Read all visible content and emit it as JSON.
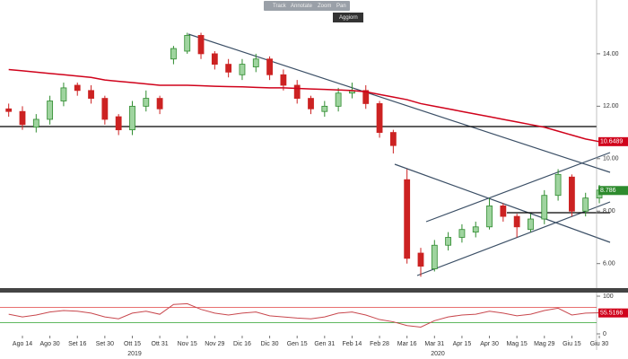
{
  "toolbar": [
    "Track",
    "Annotate",
    "Zoom",
    "Pan"
  ],
  "button": "Aggiorn",
  "years": [
    "2019",
    "2020"
  ],
  "chart_data": [
    {
      "type": "candlestick",
      "categories": [
        null,
        "Ago 14",
        null,
        "Ago 30",
        null,
        "Set 16",
        null,
        "Set 30",
        null,
        "Ott 15",
        null,
        "Ott 31",
        null,
        "Nov 15",
        null,
        "Nov 29",
        null,
        "Dic 16",
        null,
        "Dic 30",
        null,
        "Gen 15",
        null,
        "Gen 31",
        null,
        "Feb 14",
        null,
        "Feb 28",
        null,
        "Mar 16",
        null,
        "Mar 31",
        null,
        "Apr 15",
        null,
        "Apr 30",
        null,
        "Mag 15",
        null,
        "Mag 29",
        null,
        "Giu 15",
        null,
        "Giu 30"
      ],
      "open": [
        11.9,
        11.8,
        11.2,
        11.5,
        12.2,
        12.8,
        12.6,
        12.3,
        11.6,
        11.1,
        12.0,
        12.3,
        13.8,
        14.1,
        14.7,
        14.0,
        13.6,
        13.2,
        13.5,
        13.8,
        13.2,
        12.8,
        12.3,
        11.8,
        12.0,
        12.5,
        12.6,
        12.1,
        11.0,
        9.2,
        6.4,
        5.8,
        6.7,
        7.0,
        7.2,
        7.4,
        8.2,
        7.8,
        7.3,
        7.7,
        8.6,
        9.3,
        8.0,
        8.5
      ],
      "high": [
        12.1,
        12.0,
        11.7,
        12.4,
        12.9,
        12.9,
        12.8,
        12.4,
        11.7,
        12.2,
        12.6,
        12.4,
        14.3,
        14.8,
        14.8,
        14.1,
        13.8,
        13.8,
        14.0,
        13.9,
        13.4,
        13.0,
        12.4,
        12.2,
        12.7,
        12.9,
        12.8,
        12.2,
        11.1,
        9.6,
        6.6,
        6.9,
        7.2,
        7.5,
        7.6,
        8.5,
        8.3,
        7.9,
        7.9,
        8.8,
        9.6,
        9.4,
        8.7,
        9.0
      ],
      "low": [
        11.6,
        11.1,
        11.0,
        11.3,
        12.0,
        12.4,
        12.1,
        11.3,
        10.9,
        10.9,
        11.8,
        11.7,
        13.6,
        14.0,
        13.8,
        13.4,
        13.1,
        13.0,
        13.3,
        13.0,
        12.6,
        12.1,
        11.7,
        11.6,
        11.8,
        12.3,
        11.9,
        10.8,
        10.2,
        6.0,
        5.5,
        5.7,
        6.5,
        6.8,
        7.0,
        7.3,
        7.6,
        7.0,
        7.2,
        7.5,
        8.4,
        7.8,
        7.8,
        8.3
      ],
      "close": [
        11.8,
        11.3,
        11.5,
        12.2,
        12.7,
        12.6,
        12.3,
        11.5,
        11.1,
        12.0,
        12.3,
        11.9,
        14.2,
        14.7,
        14.0,
        13.6,
        13.3,
        13.6,
        13.8,
        13.2,
        12.8,
        12.3,
        11.9,
        12.0,
        12.5,
        12.6,
        12.1,
        11.0,
        10.5,
        6.2,
        5.9,
        6.7,
        7.0,
        7.3,
        7.4,
        8.2,
        7.8,
        7.4,
        7.7,
        8.6,
        9.4,
        8.0,
        8.5,
        8.8
      ],
      "up_color": "#2e8b2e",
      "down_color": "#cc2222",
      "overlay": {
        "color": "#d0021b",
        "values": [
          13.4,
          13.35,
          13.3,
          13.25,
          13.2,
          13.15,
          13.1,
          13.0,
          12.95,
          12.9,
          12.85,
          12.8,
          12.8,
          12.8,
          12.78,
          12.76,
          12.75,
          12.74,
          12.72,
          12.7,
          12.7,
          12.68,
          12.66,
          12.64,
          12.62,
          12.6,
          12.55,
          12.45,
          12.35,
          12.25,
          12.1,
          12.0,
          11.9,
          11.8,
          11.7,
          11.6,
          11.5,
          11.4,
          11.3,
          11.2,
          11.05,
          10.9,
          10.75,
          10.65
        ]
      },
      "price_tags": [
        {
          "value": 10.6489,
          "label": "10.6489",
          "color": "#d0021b"
        },
        {
          "value": 8.786,
          "label": "8.786",
          "color": "#2e8b2e"
        }
      ],
      "ylim": [
        5.1,
        16.05
      ],
      "yticks": [
        {
          "value": 6,
          "label": "6.00"
        },
        {
          "value": 8,
          "label": "8.00"
        },
        {
          "value": 10,
          "label": "10.00"
        },
        {
          "value": 12,
          "label": "12.00"
        },
        {
          "value": 14,
          "label": "14.00"
        }
      ]
    },
    {
      "type": "line",
      "color": "#c8474d",
      "values": [
        52,
        45,
        50,
        58,
        62,
        60,
        55,
        45,
        40,
        55,
        60,
        52,
        78,
        80,
        65,
        55,
        50,
        55,
        58,
        48,
        45,
        42,
        40,
        45,
        55,
        58,
        50,
        38,
        32,
        22,
        18,
        35,
        45,
        50,
        52,
        60,
        55,
        48,
        52,
        62,
        68,
        50,
        55,
        56
      ],
      "levels": [
        {
          "value": 70,
          "color": "#e04040"
        },
        {
          "value": 30,
          "color": "#2ca02c"
        }
      ],
      "price_tags": [
        {
          "value": 55.5166,
          "label": "55.5166",
          "color": "#d0021b"
        }
      ],
      "ylim": [
        0,
        100
      ],
      "yticks": [
        0,
        100
      ]
    }
  ]
}
